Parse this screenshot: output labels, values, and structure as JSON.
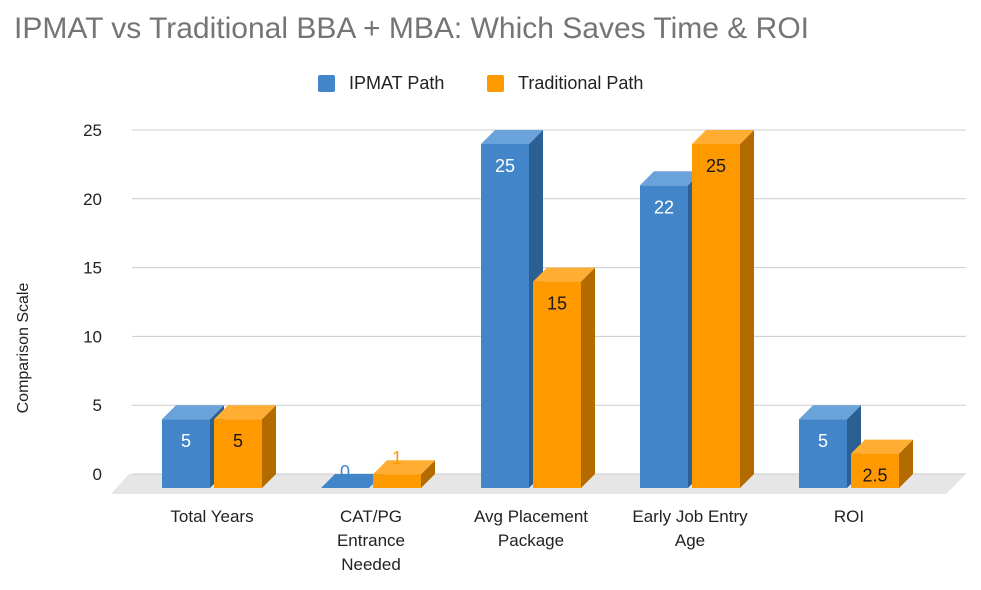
{
  "title": "IPMAT vs Traditional BBA + MBA: Which Saves Time & ROI",
  "chart_data": {
    "type": "bar",
    "variant": "3d-clustered",
    "title": "IPMAT vs Traditional BBA + MBA: Which Saves Time & ROI",
    "xlabel": "",
    "ylabel": "Comparison Scale",
    "ylim": [
      0,
      25
    ],
    "yticks": [
      0,
      5,
      10,
      15,
      20,
      25
    ],
    "grid": true,
    "legend_position": "top",
    "categories": [
      [
        "Total Years"
      ],
      [
        "CAT/PG",
        "Entrance",
        "Needed"
      ],
      [
        "Avg Placement",
        "Package"
      ],
      [
        "Early Job Entry",
        "Age"
      ],
      [
        "ROI"
      ]
    ],
    "series": [
      {
        "name": "IPMAT Path",
        "color": "#4285C9",
        "dark": "#2C5F94",
        "light": "#6AA2DA",
        "values": [
          5,
          0,
          25,
          22,
          5
        ],
        "labels": [
          "5",
          "0",
          "25",
          "22",
          "5"
        ]
      },
      {
        "name": "Traditional Path",
        "color": "#FF9900",
        "dark": "#B36B00",
        "light": "#FFAD33",
        "values": [
          5,
          1,
          15,
          25,
          2.5
        ],
        "labels": [
          "5",
          "1",
          "15",
          "25",
          "2.5"
        ]
      }
    ]
  }
}
